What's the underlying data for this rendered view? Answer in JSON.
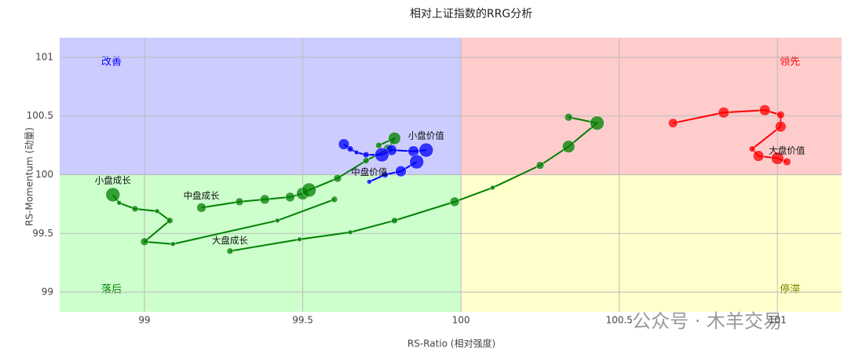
{
  "chart_data": {
    "type": "rrg",
    "title": "相对上证指数的RRG分析",
    "x_label": "RS-Ratio (相对强度)",
    "y_label": "RS-Momentum (动量)",
    "watermark": "公众号 · 木羊交易",
    "xlim": [
      98.732,
      101.203
    ],
    "ylim": [
      98.833,
      101.167
    ],
    "xticks": [
      99,
      99.5,
      100,
      100.5,
      101
    ],
    "yticks": [
      99,
      99.5,
      100,
      100.5,
      101
    ],
    "grid": true,
    "center": [
      100,
      100
    ],
    "quadrants": [
      {
        "label": "改善",
        "side": "top-left",
        "fill": "#ccccff",
        "color": "#0000ff"
      },
      {
        "label": "领先",
        "side": "top-right",
        "fill": "#ffcccc",
        "color": "#ff0000"
      },
      {
        "label": "落后",
        "side": "bottom-left",
        "fill": "#ccffcc",
        "color": "#008000"
      },
      {
        "label": "停滞",
        "side": "bottom-right",
        "fill": "#ffffcc",
        "color": "#808000"
      }
    ],
    "series": [
      {
        "name": "小盘成长",
        "color": "#008000",
        "x": [
          98.9,
          98.92,
          98.97,
          99.04,
          99.08,
          99.0,
          99.09,
          99.42,
          99.6
        ],
        "values": [
          99.83,
          99.76,
          99.71,
          99.69,
          99.61,
          99.43,
          99.41,
          99.61,
          99.79
        ],
        "sizes": [
          9,
          3,
          4,
          3,
          4,
          5,
          3,
          3,
          4
        ]
      },
      {
        "name": "中盘成长",
        "color": "#008000",
        "x": [
          99.18,
          99.3,
          99.38,
          99.46,
          99.5,
          99.52,
          99.61,
          99.7,
          99.77,
          99.79,
          99.74
        ],
        "values": [
          99.72,
          99.77,
          99.79,
          99.81,
          99.84,
          99.87,
          99.97,
          100.12,
          100.22,
          100.31,
          100.25
        ],
        "sizes": [
          6,
          5,
          6,
          6,
          8,
          9,
          5,
          4,
          6,
          8,
          4
        ]
      },
      {
        "name": "大盘成长",
        "color": "#008000",
        "x": [
          99.27,
          99.49,
          99.65,
          99.79,
          99.98,
          100.1,
          100.25,
          100.34,
          100.43,
          100.34
        ],
        "values": [
          99.35,
          99.45,
          99.51,
          99.61,
          99.77,
          99.89,
          100.08,
          100.24,
          100.44,
          100.49
        ],
        "sizes": [
          4,
          3,
          3,
          4,
          6,
          3,
          5,
          8,
          9,
          5
        ]
      },
      {
        "name": "小盘价值",
        "color": "#0000ff",
        "x": [
          99.89,
          99.85,
          99.78,
          99.75,
          99.7,
          99.67,
          99.65,
          99.63
        ],
        "values": [
          100.21,
          100.2,
          100.21,
          100.17,
          100.17,
          100.19,
          100.22,
          100.26
        ],
        "sizes": [
          9,
          7,
          7,
          9,
          4,
          3,
          4,
          7
        ]
      },
      {
        "name": "中盘价值",
        "color": "#0000ff",
        "x": [
          99.71,
          99.76,
          99.81,
          99.86
        ],
        "values": [
          99.94,
          100.0,
          100.03,
          100.11
        ],
        "sizes": [
          3,
          4,
          7,
          9
        ]
      },
      {
        "name": "大盘价值",
        "color": "#ff0000",
        "x": [
          101.03,
          101.0,
          100.94,
          100.92,
          101.01,
          101.01,
          100.96,
          100.83,
          100.67
        ],
        "values": [
          100.11,
          100.14,
          100.16,
          100.22,
          100.41,
          100.51,
          100.55,
          100.53,
          100.44
        ],
        "sizes": [
          5,
          8,
          7,
          4,
          7,
          5,
          7,
          7,
          6
        ]
      }
    ]
  }
}
